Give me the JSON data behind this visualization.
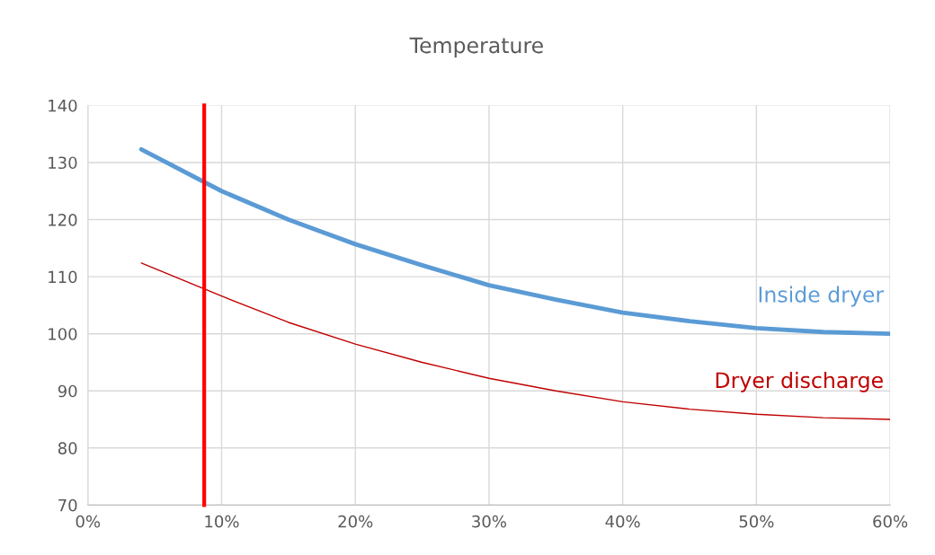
{
  "chart_data": {
    "type": "line",
    "title": "Temperature",
    "x": [
      4,
      10,
      15,
      20,
      25,
      30,
      35,
      40,
      45,
      50,
      55,
      60
    ],
    "series": [
      {
        "name": "Inside dryer",
        "color": "#5b9bd5",
        "values": [
          132.3,
          125,
          120,
          115.7,
          112,
          108.5,
          106,
          103.7,
          102.2,
          101,
          100.3,
          100
        ]
      },
      {
        "name": "Dryer discharge",
        "color": "#c00000",
        "values": [
          112.4,
          106.6,
          102,
          98.2,
          95,
          92.2,
          90,
          88.1,
          86.8,
          85.9,
          85.3,
          85
        ]
      }
    ],
    "xlim": [
      0,
      60
    ],
    "xticks": [
      {
        "value": 0,
        "label": "0%"
      },
      {
        "value": 10,
        "label": "10%"
      },
      {
        "value": 20,
        "label": "20%"
      },
      {
        "value": 30,
        "label": "30%"
      },
      {
        "value": 40,
        "label": "40%"
      },
      {
        "value": 50,
        "label": "50%"
      },
      {
        "value": 60,
        "label": "60%"
      }
    ],
    "ylim": [
      70,
      140
    ],
    "yticks": [
      70,
      80,
      90,
      100,
      110,
      120,
      130,
      140
    ],
    "ref_lines": [
      {
        "axis": "x",
        "value": 8.7,
        "color": "#ff0000"
      }
    ],
    "grid": true,
    "legend": false,
    "marker": "none",
    "line_style": "solid"
  }
}
